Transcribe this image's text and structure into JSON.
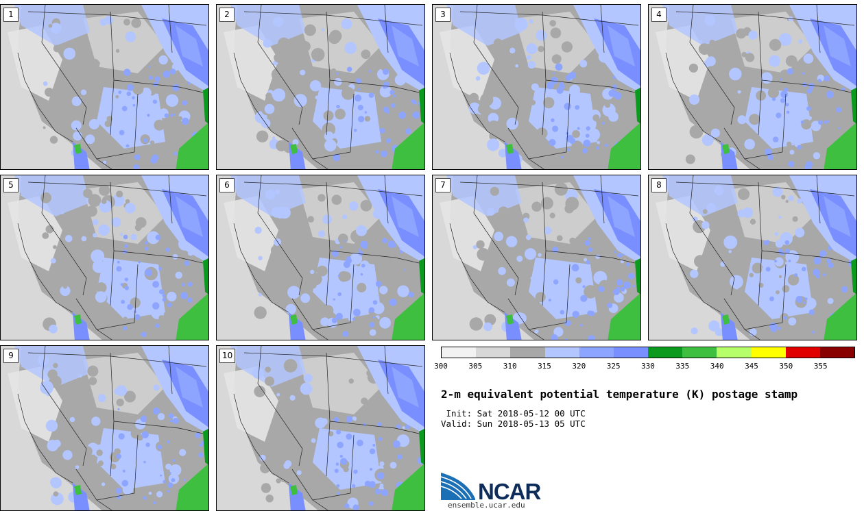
{
  "panels": [
    {
      "label": "1"
    },
    {
      "label": "2"
    },
    {
      "label": "3"
    },
    {
      "label": "4"
    },
    {
      "label": "5"
    },
    {
      "label": "6"
    },
    {
      "label": "7"
    },
    {
      "label": "8"
    },
    {
      "label": "9"
    },
    {
      "label": "10"
    }
  ],
  "colorbar": {
    "ticks": [
      "300",
      "305",
      "310",
      "315",
      "320",
      "325",
      "330",
      "335",
      "340",
      "345",
      "350",
      "355"
    ],
    "colors": [
      "#f2f2f2",
      "#d8d8d8",
      "#a8a8a8",
      "#b3c6ff",
      "#8ea5ff",
      "#7a8fff",
      "#0c9a1e",
      "#3fbf3f",
      "#b6ff6a",
      "#ffff00",
      "#e00000",
      "#880000"
    ]
  },
  "header": {
    "title": "2-m equivalent potential temperature (K) postage stamp",
    "init": " Init: Sat 2018-05-12 00 UTC",
    "valid": "Valid: Sun 2018-05-13 05 UTC"
  },
  "logo": {
    "name": "NCAR",
    "site": "ensemble.ucar.edu",
    "colors": {
      "blue": "#1a6fb5",
      "navy": "#0e2c59"
    }
  },
  "map": {
    "colors": {
      "ocean": "#d8d8d8",
      "land_light": "#e6e6e6",
      "land_grey": "#a8a8a8",
      "blue_light": "#b3c6ff",
      "blue_mid": "#8ea5ff",
      "blue_dark": "#7a8fff",
      "green": "#3fbf3f",
      "green_dark": "#0c9a1e"
    }
  }
}
